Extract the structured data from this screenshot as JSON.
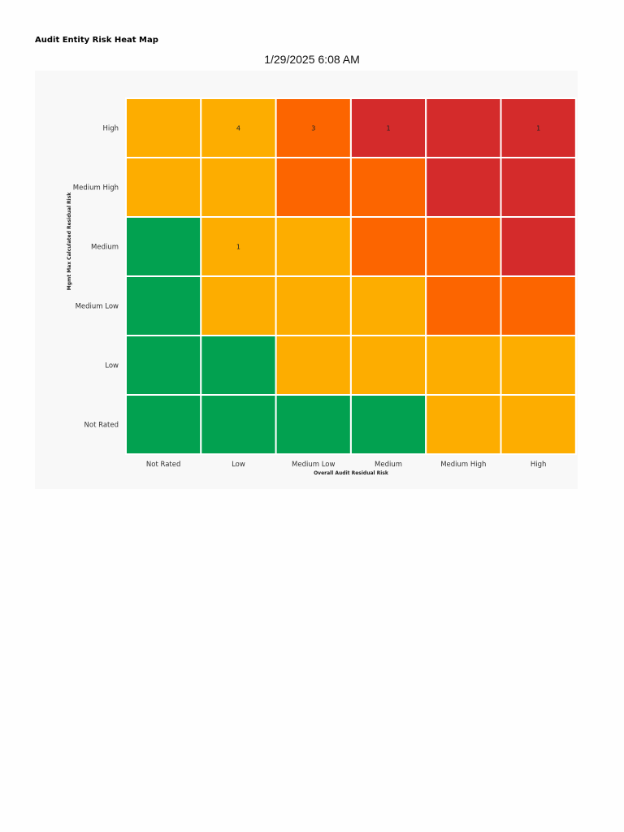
{
  "report_title": "Audit Entity Risk Heat Map",
  "timestamp": "1/29/2025 6:08 AM",
  "colors": {
    "green": "#02a150",
    "amber": "#fdad00",
    "orange": "#fc6500",
    "red": "#d42b2b"
  },
  "chart_data": {
    "type": "heatmap",
    "xlabel": "Overall Audit Residual Risk",
    "ylabel": "Mgmt Max Calculated Residual Risk",
    "x_categories": [
      "Not Rated",
      "Low",
      "Medium Low",
      "Medium",
      "Medium High",
      "High"
    ],
    "y_categories": [
      "High",
      "Medium High",
      "Medium",
      "Medium Low",
      "Low",
      "Not Rated"
    ],
    "cell_colors": [
      [
        "amber",
        "amber",
        "orange",
        "red",
        "red",
        "red"
      ],
      [
        "amber",
        "amber",
        "orange",
        "orange",
        "red",
        "red"
      ],
      [
        "green",
        "amber",
        "amber",
        "orange",
        "orange",
        "red"
      ],
      [
        "green",
        "amber",
        "amber",
        "amber",
        "orange",
        "orange"
      ],
      [
        "green",
        "green",
        "amber",
        "amber",
        "amber",
        "amber"
      ],
      [
        "green",
        "green",
        "green",
        "green",
        "amber",
        "amber"
      ]
    ],
    "counts": [
      [
        "",
        "4",
        "3",
        "1",
        "",
        "1"
      ],
      [
        "",
        "",
        "",
        "",
        "",
        ""
      ],
      [
        "",
        "1",
        "",
        "",
        "",
        ""
      ],
      [
        "",
        "",
        "",
        "",
        "",
        ""
      ],
      [
        "",
        "",
        "",
        "",
        "",
        ""
      ],
      [
        "",
        "",
        "",
        "",
        "",
        ""
      ]
    ]
  }
}
